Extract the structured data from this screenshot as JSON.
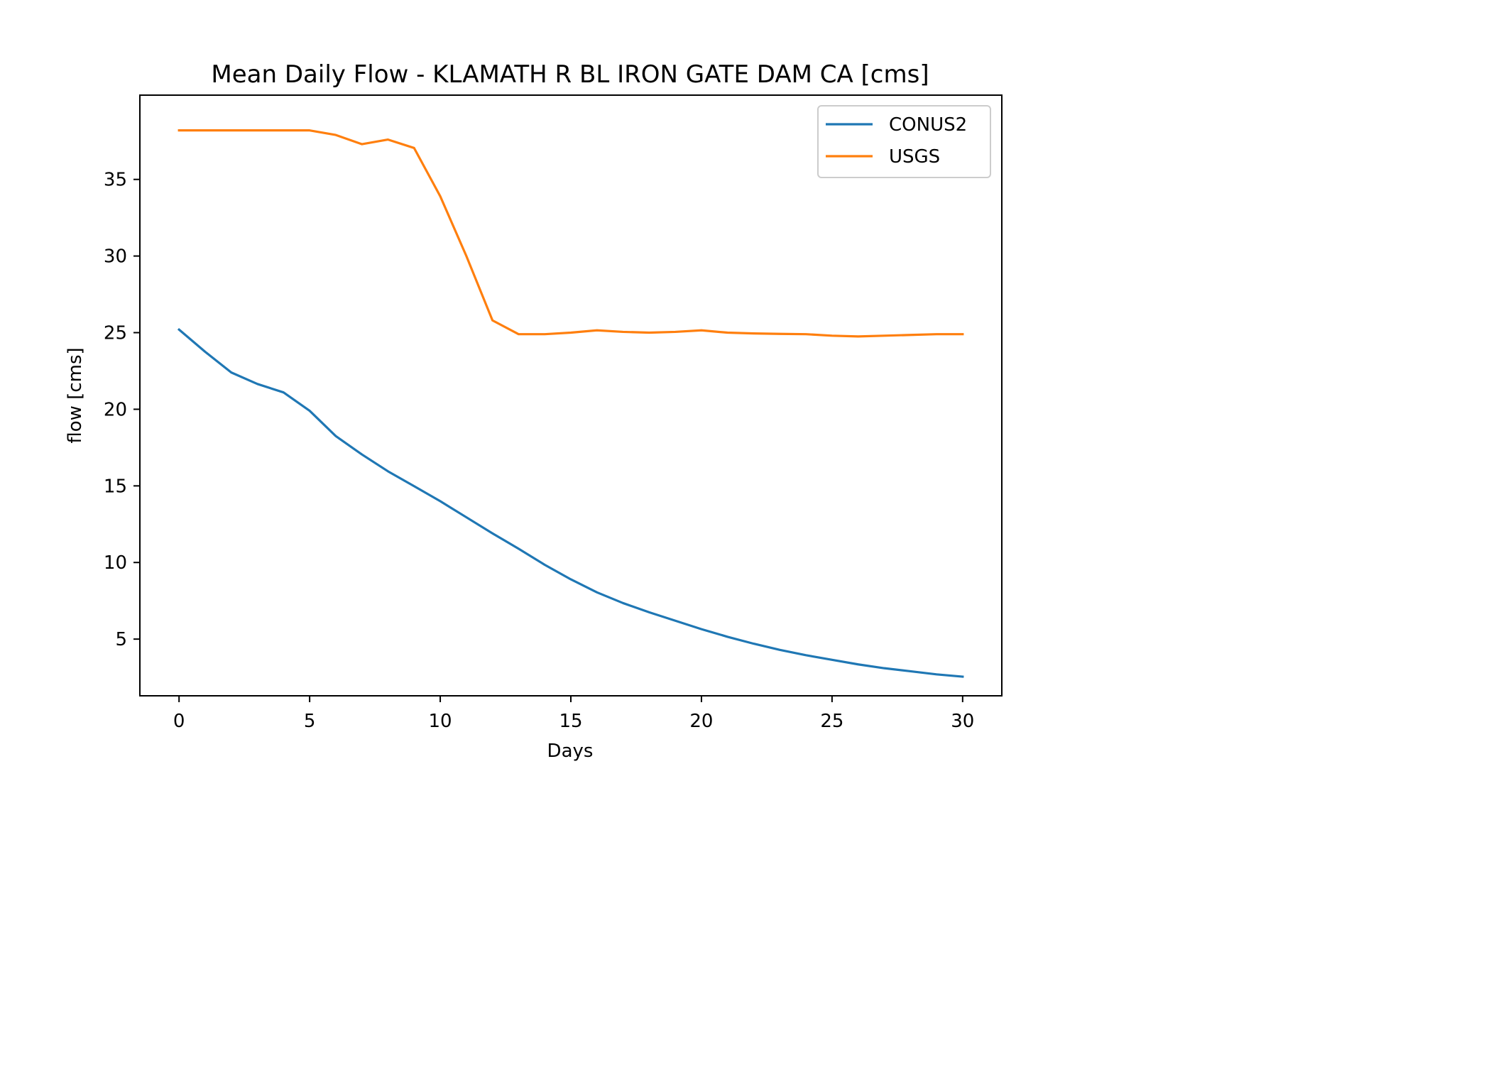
{
  "chart_data": {
    "type": "line",
    "title": "Mean Daily Flow - KLAMATH R BL IRON GATE DAM CA [cms]",
    "xlabel": "Days",
    "ylabel": "flow [cms]",
    "xlim": [
      -1.5,
      31.5
    ],
    "ylim": [
      1.3,
      40.5
    ],
    "xticks": [
      0,
      5,
      10,
      15,
      20,
      25,
      30
    ],
    "yticks": [
      5,
      10,
      15,
      20,
      25,
      30,
      35
    ],
    "grid": false,
    "legend": "top-right",
    "x": [
      0,
      1,
      2,
      3,
      4,
      5,
      6,
      7,
      8,
      9,
      10,
      11,
      12,
      13,
      14,
      15,
      16,
      17,
      18,
      19,
      20,
      21,
      22,
      23,
      24,
      25,
      26,
      27,
      28,
      29,
      30
    ],
    "series": [
      {
        "name": "CONUS2",
        "color": "#1f77b4",
        "values": [
          25.2,
          23.75,
          22.4,
          21.65,
          21.1,
          19.9,
          18.25,
          17.05,
          15.95,
          14.98,
          14.0,
          12.95,
          11.9,
          10.9,
          9.85,
          8.9,
          8.05,
          7.35,
          6.75,
          6.2,
          5.65,
          5.15,
          4.7,
          4.3,
          3.95,
          3.65,
          3.35,
          3.1,
          2.9,
          2.7,
          2.55
        ]
      },
      {
        "name": "USGS",
        "color": "#ff7f0e",
        "values": [
          38.2,
          38.2,
          38.2,
          38.2,
          38.2,
          38.2,
          37.9,
          37.3,
          37.6,
          37.05,
          33.9,
          30.0,
          25.8,
          24.9,
          24.9,
          25.0,
          25.15,
          25.05,
          25.0,
          25.05,
          25.15,
          25.0,
          24.95,
          24.92,
          24.9,
          24.8,
          24.75,
          24.8,
          24.85,
          24.9,
          24.9
        ]
      }
    ]
  }
}
